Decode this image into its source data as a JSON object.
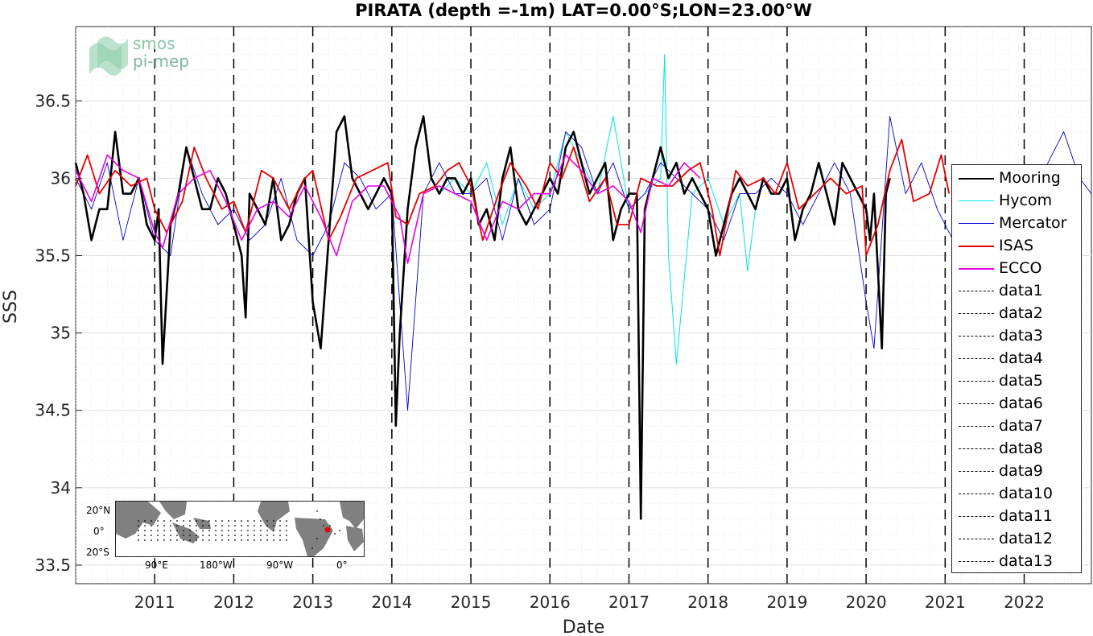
{
  "chart_data": {
    "type": "line",
    "title": "PIRATA (depth =-1m) LAT=0.00°S;LON=23.00°W",
    "xlabel": "Date",
    "ylabel": "SSS",
    "xlim": [
      2010.0,
      2022.85
    ],
    "ylim": [
      33.38,
      36.98
    ],
    "x_ticks": [
      "2011",
      "2012",
      "2013",
      "2014",
      "2015",
      "2016",
      "2017",
      "2018",
      "2019",
      "2020",
      "2021",
      "2022"
    ],
    "y_ticks": [
      "33.5",
      "34",
      "34.5",
      "35",
      "35.5",
      "36",
      "36.5"
    ],
    "grid": true,
    "legend_position": "right",
    "vertical_dashed_lines_x": [
      2011.0,
      2012.0,
      2013.0,
      2014.0,
      2015.0,
      2016.0,
      2017.0,
      2018.0,
      2019.0,
      2020.0,
      2021.0,
      2022.0
    ],
    "series": [
      {
        "name": "Mooring",
        "color": "#000000",
        "x": [
          2010.0,
          2010.1,
          2010.2,
          2010.3,
          2010.4,
          2010.5,
          2010.6,
          2010.7,
          2010.8,
          2010.9,
          2011.0,
          2011.05,
          2011.1,
          2011.2,
          2011.3,
          2011.4,
          2011.5,
          2011.6,
          2011.7,
          2011.8,
          2011.9,
          2012.0,
          2012.1,
          2012.15,
          2012.2,
          2012.3,
          2012.4,
          2012.5,
          2012.6,
          2012.7,
          2012.8,
          2012.9,
          2013.0,
          2013.1,
          2013.2,
          2013.3,
          2013.4,
          2013.5,
          2013.6,
          2013.7,
          2013.8,
          2013.9,
          2014.0,
          2014.05,
          2014.1,
          2014.2,
          2014.3,
          2014.4,
          2014.5,
          2014.6,
          2014.7,
          2014.8,
          2014.9,
          2015.0,
          2015.1,
          2015.2,
          2015.3,
          2015.4,
          2015.5,
          2015.6,
          2015.7,
          2015.8,
          2015.9,
          2016.0,
          2016.1,
          2016.2,
          2016.3,
          2016.4,
          2016.5,
          2016.6,
          2016.7,
          2016.8,
          2016.9,
          2017.0,
          2017.1,
          2017.15,
          2017.2,
          2017.3,
          2017.4,
          2017.5,
          2017.6,
          2017.7,
          2017.8,
          2017.9,
          2018.0,
          2018.1,
          2018.2,
          2018.3,
          2018.4,
          2018.5,
          2018.6,
          2018.7,
          2018.8,
          2018.9,
          2019.0,
          2019.1,
          2019.2,
          2019.3,
          2019.4,
          2019.5,
          2019.6,
          2019.7,
          2019.8,
          2019.9,
          2020.0,
          2020.05,
          2020.1,
          2020.2,
          2020.25,
          2020.3
        ],
        "y": [
          36.1,
          35.9,
          35.6,
          35.8,
          35.8,
          36.3,
          35.9,
          35.9,
          36.0,
          35.7,
          35.6,
          35.8,
          34.8,
          35.7,
          35.9,
          36.2,
          36.0,
          35.8,
          35.8,
          36.0,
          35.9,
          35.7,
          35.5,
          35.1,
          35.9,
          35.8,
          35.7,
          36.0,
          35.6,
          35.7,
          35.9,
          36.0,
          35.2,
          34.9,
          35.6,
          36.3,
          36.4,
          36.0,
          35.9,
          35.8,
          35.9,
          36.0,
          35.9,
          34.4,
          35.0,
          35.8,
          36.2,
          36.4,
          36.0,
          35.9,
          36.0,
          36.0,
          35.9,
          36.0,
          35.7,
          35.8,
          35.6,
          36.0,
          36.2,
          35.8,
          35.7,
          35.8,
          35.9,
          36.0,
          35.9,
          36.2,
          36.3,
          36.1,
          35.9,
          36.0,
          36.1,
          35.6,
          35.8,
          35.9,
          35.9,
          33.8,
          35.8,
          36.0,
          36.2,
          36.0,
          36.1,
          35.9,
          36.0,
          35.9,
          35.8,
          35.5,
          35.7,
          35.9,
          36.0,
          35.9,
          35.8,
          36.0,
          35.9,
          35.9,
          36.0,
          35.6,
          35.8,
          35.9,
          36.1,
          35.9,
          35.7,
          36.1,
          36.0,
          35.9,
          35.8,
          35.6,
          35.9,
          34.9,
          35.9,
          36.0
        ]
      },
      {
        "name": "Hycom",
        "color": "#00e5e5",
        "x": [
          2014.6,
          2014.8,
          2015.0,
          2015.2,
          2015.4,
          2015.6,
          2015.8,
          2016.0,
          2016.2,
          2016.4,
          2016.6,
          2016.8,
          2017.0,
          2017.2,
          2017.4,
          2017.45,
          2017.5,
          2017.6,
          2017.8,
          2018.0,
          2018.2,
          2018.4,
          2018.5,
          2018.6
        ],
        "y": [
          35.9,
          36.0,
          35.9,
          36.1,
          35.7,
          36.0,
          35.8,
          35.9,
          36.3,
          36.1,
          35.9,
          36.4,
          35.8,
          35.9,
          36.0,
          36.8,
          35.5,
          34.8,
          35.9,
          36.0,
          35.7,
          35.9,
          35.4,
          35.8
        ]
      },
      {
        "name": "Mercator",
        "color": "#0000cc",
        "x": [
          2010.0,
          2010.2,
          2010.4,
          2010.6,
          2010.8,
          2011.0,
          2011.2,
          2011.4,
          2011.6,
          2011.8,
          2012.0,
          2012.2,
          2012.4,
          2012.6,
          2012.8,
          2013.0,
          2013.2,
          2013.4,
          2013.6,
          2013.8,
          2014.0,
          2014.2,
          2014.4,
          2014.6,
          2014.8,
          2015.0,
          2015.2,
          2015.4,
          2015.6,
          2015.8,
          2016.0,
          2016.2,
          2016.4,
          2016.6,
          2016.8,
          2017.0,
          2017.2,
          2017.4,
          2017.6,
          2017.8,
          2018.0,
          2018.2,
          2018.4,
          2018.6,
          2018.8,
          2019.0,
          2019.2,
          2019.4,
          2019.6,
          2019.8,
          2020.0,
          2020.1,
          2020.3,
          2020.5,
          2020.7,
          2020.9,
          2021.1,
          2021.3,
          2021.5,
          2021.7,
          2021.9,
          2022.1,
          2022.3,
          2022.5,
          2022.7,
          2022.85
        ],
        "y": [
          36.0,
          35.8,
          36.1,
          35.6,
          36.0,
          35.6,
          35.5,
          36.2,
          35.9,
          35.7,
          35.8,
          35.6,
          35.7,
          36.0,
          35.6,
          35.5,
          35.7,
          36.1,
          36.0,
          35.8,
          35.9,
          34.5,
          35.9,
          36.1,
          35.9,
          35.9,
          36.0,
          35.6,
          36.0,
          35.7,
          35.8,
          36.3,
          36.2,
          35.9,
          36.1,
          35.8,
          35.9,
          36.1,
          36.0,
          35.9,
          35.8,
          35.6,
          35.9,
          35.9,
          36.0,
          35.9,
          35.7,
          35.9,
          36.1,
          35.9,
          35.2,
          34.9,
          36.4,
          35.9,
          36.1,
          35.8,
          35.6,
          35.9,
          36.0,
          35.8,
          35.9,
          35.6,
          36.1,
          36.3,
          36.0,
          35.9
        ]
      },
      {
        "name": "ISAS",
        "color": "#e60000",
        "x": [
          2010.0,
          2010.15,
          2010.3,
          2010.5,
          2010.7,
          2010.9,
          2011.0,
          2011.15,
          2011.35,
          2011.5,
          2011.65,
          2011.85,
          2012.0,
          2012.15,
          2012.35,
          2012.5,
          2012.7,
          2012.9,
          2013.0,
          2013.2,
          2013.35,
          2013.55,
          2013.75,
          2013.95,
          2014.05,
          2014.2,
          2014.35,
          2014.55,
          2014.7,
          2014.85,
          2015.0,
          2015.15,
          2015.35,
          2015.5,
          2015.7,
          2015.85,
          2016.0,
          2016.15,
          2016.3,
          2016.5,
          2016.7,
          2016.85,
          2017.0,
          2017.15,
          2017.35,
          2017.55,
          2017.75,
          2017.9,
          2018.05,
          2018.15,
          2018.35,
          2018.5,
          2018.7,
          2018.85,
          2019.0,
          2019.15,
          2019.35,
          2019.55,
          2019.75,
          2019.95,
          2020.0,
          2020.15,
          2020.3,
          2020.45,
          2020.6,
          2020.8,
          2020.95,
          2021.05
        ],
        "y": [
          35.95,
          36.15,
          35.9,
          36.05,
          35.95,
          36.0,
          35.8,
          35.65,
          35.85,
          36.2,
          36.0,
          35.8,
          35.85,
          35.65,
          36.05,
          36.0,
          35.8,
          36.0,
          36.05,
          35.6,
          35.75,
          36.0,
          36.05,
          36.1,
          35.75,
          35.7,
          35.9,
          35.95,
          36.05,
          36.1,
          35.95,
          35.6,
          35.9,
          36.1,
          35.95,
          35.8,
          36.1,
          36.0,
          36.2,
          35.85,
          36.0,
          35.7,
          35.7,
          36.0,
          35.95,
          35.95,
          36.05,
          36.1,
          35.8,
          35.5,
          36.05,
          35.95,
          36.0,
          35.9,
          36.1,
          35.8,
          35.9,
          36.0,
          35.9,
          35.95,
          35.5,
          35.7,
          36.05,
          36.25,
          35.85,
          35.9,
          36.15,
          35.9
        ]
      },
      {
        "name": "ECCO",
        "color": "#e600e6",
        "x": [
          2010.0,
          2010.2,
          2010.4,
          2010.6,
          2010.8,
          2011.0,
          2011.1,
          2011.3,
          2011.5,
          2011.7,
          2011.9,
          2012.1,
          2012.3,
          2012.5,
          2012.7,
          2012.9,
          2013.1,
          2013.3,
          2013.5,
          2013.7,
          2013.9,
          2014.1,
          2014.2,
          2014.4,
          2014.6,
          2014.8,
          2015.0,
          2015.2,
          2015.4,
          2015.6,
          2015.8,
          2016.0,
          2016.2,
          2016.4,
          2016.6,
          2016.8,
          2017.0,
          2017.15,
          2017.3,
          2017.5,
          2017.7,
          2017.9
        ],
        "y": [
          36.05,
          35.85,
          36.15,
          36.05,
          36.0,
          35.65,
          35.55,
          35.9,
          36.0,
          36.05,
          35.85,
          35.6,
          35.8,
          35.85,
          35.75,
          35.95,
          35.75,
          35.5,
          35.85,
          35.95,
          35.95,
          35.75,
          35.45,
          35.9,
          35.95,
          35.9,
          35.85,
          35.6,
          35.85,
          35.8,
          35.9,
          35.9,
          36.15,
          36.05,
          35.9,
          35.95,
          35.85,
          35.65,
          36.0,
          35.95,
          36.1,
          36.0
        ]
      }
    ],
    "legend_entries": [
      "Mooring",
      "Hycom",
      "Mercator",
      "ISAS",
      "ECCO",
      "data1",
      "data2",
      "data3",
      "data4",
      "data5",
      "data6",
      "data7",
      "data8",
      "data9",
      "data10",
      "data11",
      "data12",
      "data13"
    ]
  },
  "logo": {
    "line1": "smos",
    "line2": "pi-mep"
  },
  "inset_map": {
    "lat_labels": [
      "20°N",
      "0°",
      "20°S"
    ],
    "lon_labels": [
      "90°E",
      "180°W",
      "90°W",
      "0°"
    ],
    "marker_color": "#e60000"
  }
}
